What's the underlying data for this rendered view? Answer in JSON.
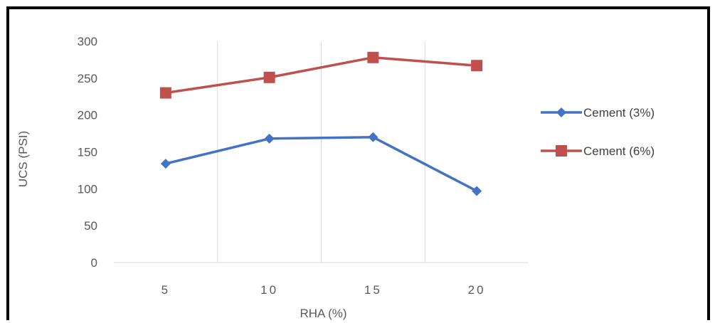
{
  "chart_data": {
    "type": "line",
    "categories": [
      "5",
      "10",
      "15",
      "20"
    ],
    "series": [
      {
        "name": "Cement (3%)",
        "values": [
          134,
          168,
          170,
          97
        ],
        "color": "#4472C4",
        "marker": "diamond"
      },
      {
        "name": "Cement (6%)",
        "values": [
          230,
          251,
          278,
          267
        ],
        "color": "#C0504D",
        "marker": "square"
      }
    ],
    "xlabel": "RHA (%)",
    "ylabel": "UCS (PSI)",
    "ylim": [
      0,
      300
    ],
    "yticks": [
      0,
      50,
      100,
      150,
      200,
      250,
      300
    ],
    "grid": "vertical",
    "legend": "right"
  }
}
